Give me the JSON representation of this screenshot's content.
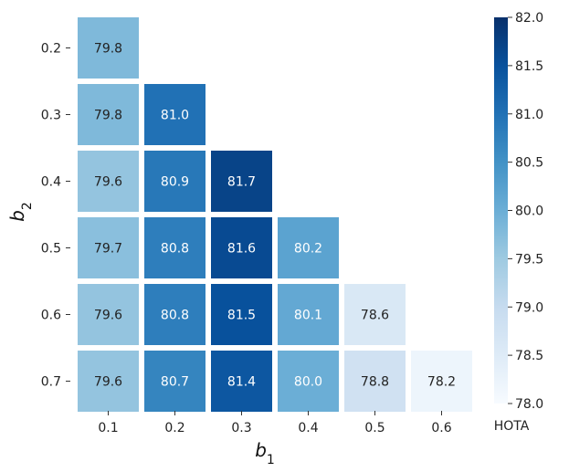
{
  "chart_data": {
    "type": "heatmap",
    "title": "",
    "xlabel": "b",
    "xlabel_sub": "1",
    "ylabel": "b",
    "ylabel_sub": "2",
    "x_categories": [
      "0.1",
      "0.2",
      "0.3",
      "0.4",
      "0.5",
      "0.6"
    ],
    "y_categories": [
      "0.2",
      "0.3",
      "0.4",
      "0.5",
      "0.6",
      "0.7"
    ],
    "values": [
      [
        79.8,
        null,
        null,
        null,
        null,
        null
      ],
      [
        79.8,
        81.0,
        null,
        null,
        null,
        null
      ],
      [
        79.6,
        80.9,
        81.7,
        null,
        null,
        null
      ],
      [
        79.7,
        80.8,
        81.6,
        80.2,
        null,
        null
      ],
      [
        79.6,
        80.8,
        81.5,
        80.1,
        78.6,
        null
      ],
      [
        79.6,
        80.7,
        81.4,
        80.0,
        78.8,
        78.2
      ]
    ],
    "colorbar": {
      "label": "HOTA",
      "min": 78.0,
      "max": 82.0,
      "ticks": [
        "78.0",
        "78.5",
        "79.0",
        "79.5",
        "80.0",
        "80.5",
        "81.0",
        "81.5",
        "82.0"
      ],
      "colormap": "Blues"
    },
    "grid": false,
    "legend": "colorbar-right"
  }
}
